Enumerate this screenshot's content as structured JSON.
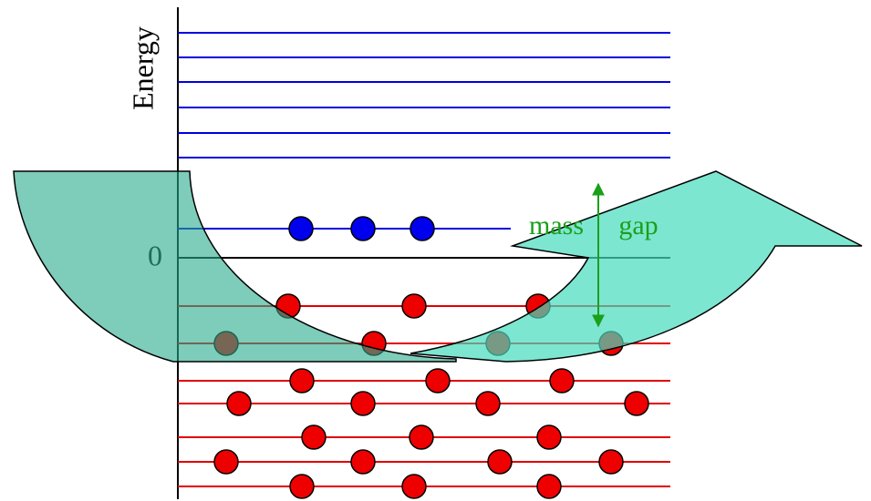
{
  "labels": {
    "energy": "Energy",
    "zero": "0",
    "mass": "mass",
    "gap": "gap"
  }
}
